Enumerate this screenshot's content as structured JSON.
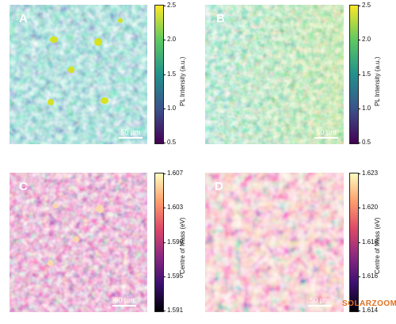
{
  "panels": [
    {
      "label": "A",
      "scale": "50 μm",
      "cbar_label": "PL Intensity (a.u.)",
      "ticks": [
        "2.5",
        "2.0",
        "1.5",
        "1.0",
        "0.5"
      ],
      "colormap": "viridis"
    },
    {
      "label": "B",
      "scale": "50 μm",
      "cbar_label": "PL Intensity (a.u.)",
      "ticks": [
        "2.5",
        "2.0",
        "1.5",
        "1.0",
        "0.5"
      ],
      "colormap": "viridis"
    },
    {
      "label": "C",
      "scale": "50 μm",
      "cbar_label": "Centre of Mass (eV)",
      "ticks": [
        "1.607",
        "1.603",
        "1.599",
        "1.595",
        "1.591"
      ],
      "colormap": "magma"
    },
    {
      "label": "D",
      "scale": "50 μm",
      "cbar_label": "Centre of Mass (eV)",
      "ticks": [
        "1.623",
        "1.620",
        "1.618",
        "1.616",
        "1.614"
      ],
      "colormap": "magma"
    }
  ],
  "watermark": "SOLARZOOM"
}
